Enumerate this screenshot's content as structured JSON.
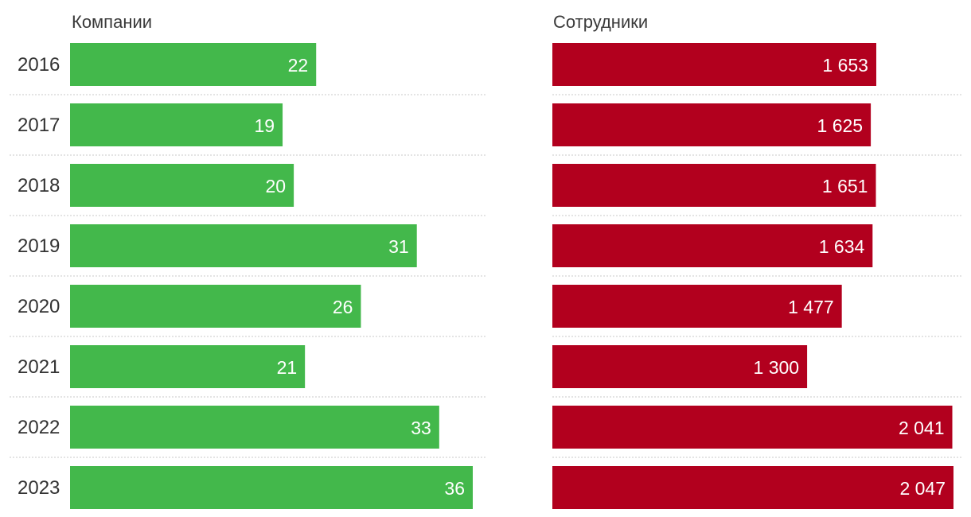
{
  "chart_data": {
    "type": "bar",
    "orientation": "horizontal",
    "categories": [
      "2016",
      "2017",
      "2018",
      "2019",
      "2020",
      "2021",
      "2022",
      "2023"
    ],
    "series": [
      {
        "name": "Компании",
        "values": [
          22,
          19,
          20,
          31,
          26,
          21,
          33,
          36
        ],
        "labels": [
          "22",
          "19",
          "20",
          "31",
          "26",
          "21",
          "33",
          "36"
        ],
        "color": "#43b84b"
      },
      {
        "name": "Сотрудники",
        "values": [
          1653,
          1625,
          1651,
          1634,
          1477,
          1300,
          2041,
          2047
        ],
        "labels": [
          "1 653",
          "1 625",
          "1 651",
          "1 634",
          "1 477",
          "1 300",
          "2 041",
          "2 047"
        ],
        "color": "#b2001e"
      }
    ],
    "grid": false,
    "legend": "none"
  }
}
